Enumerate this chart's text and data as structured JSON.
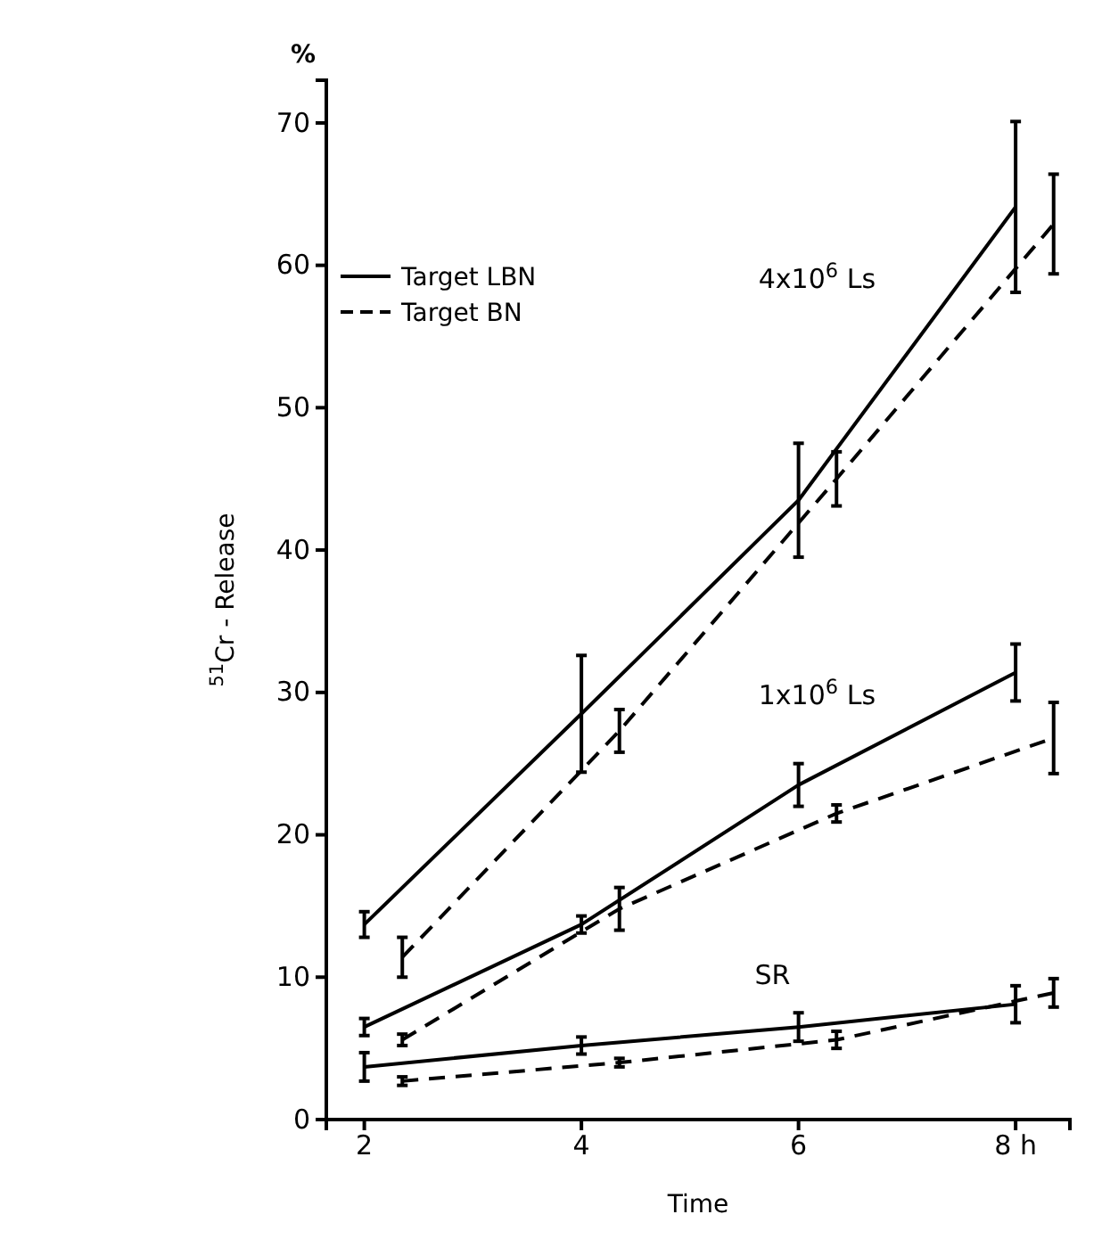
{
  "chart_data": {
    "type": "line",
    "xlabel": "Time",
    "ylabel": "$^{51}$Cr - Release",
    "xlim": [
      1.65,
      8.5
    ],
    "xticks": [
      2,
      4,
      6,
      {
        "value": 8,
        "label": "8 h"
      }
    ],
    "ylim": [
      0,
      73
    ],
    "yticks": [
      0,
      10,
      20,
      30,
      40,
      50,
      60,
      70
    ],
    "grid": false,
    "legend": "top left",
    "marker": "none",
    "series": [
      {
        "name": "Target LBN",
        "color": "#000000",
        "line_style": "solid",
        "x": [
          2,
          4,
          6,
          8
        ],
        "values": [
          13.7,
          28.5,
          43.5,
          64.1
        ],
        "errors": [
          0.9,
          4.1,
          4,
          6
        ]
      },
      {
        "name": "Target BN",
        "color": "#000000",
        "line_style": "dashed",
        "x": [
          2.35,
          4.35,
          6.35,
          8.35
        ],
        "values": [
          11.4,
          27.3,
          45,
          62.9
        ],
        "errors": [
          1.4,
          1.5,
          1.9,
          3.5
        ]
      },
      {
        "color": "#000000",
        "line_style": "solid",
        "x": [
          2,
          4,
          6,
          8
        ],
        "values": [
          6.5,
          13.7,
          23.5,
          31.4
        ],
        "errors": [
          0.6,
          0.6,
          1.5,
          2
        ]
      },
      {
        "color": "#000000",
        "line_style": "dashed",
        "x": [
          2.35,
          4.35,
          6.35,
          8.35
        ],
        "values": [
          5.6,
          14.8,
          21.5,
          26.8
        ],
        "errors": [
          0.4,
          1.5,
          0.6,
          2.5
        ]
      },
      {
        "color": "#000000",
        "line_style": "solid",
        "x": [
          2,
          4,
          6,
          8
        ],
        "values": [
          3.7,
          5.2,
          6.5,
          8.1
        ],
        "errors": [
          1,
          0.6,
          1,
          1.3
        ]
      },
      {
        "color": "#000000",
        "line_style": "dashed",
        "x": [
          2.35,
          4.35,
          6.35,
          8.35
        ],
        "values": [
          2.7,
          4,
          5.6,
          8.9
        ],
        "errors": [
          0.3,
          0.3,
          0.6,
          1
        ]
      }
    ],
    "annotations": [
      "%",
      "4x10$^{6}$ Ls",
      "1x10$^{6}$ Ls",
      "SR"
    ]
  }
}
